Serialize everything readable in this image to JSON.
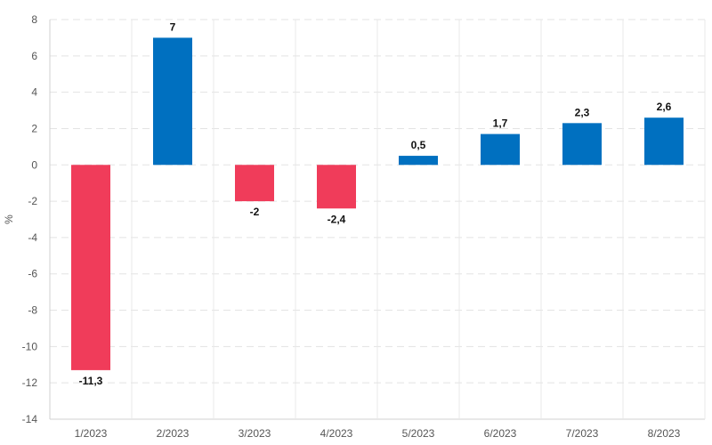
{
  "chart_data": {
    "type": "bar",
    "title": "",
    "xlabel": "",
    "ylabel": "%",
    "categories": [
      "1/2023",
      "2/2023",
      "3/2023",
      "4/2023",
      "5/2023",
      "6/2023",
      "7/2023",
      "8/2023"
    ],
    "values": [
      -11.3,
      7,
      -2,
      -2.4,
      0.5,
      1.7,
      2.3,
      2.6
    ],
    "data_labels": [
      "-11,3",
      "7",
      "-2",
      "-2,4",
      "0,5",
      "1,7",
      "2,3",
      "2,6"
    ],
    "ylim": [
      -14,
      8
    ],
    "yticks": [
      -14,
      -12,
      -10,
      -8,
      -6,
      -4,
      -2,
      0,
      2,
      4,
      6,
      8
    ],
    "grid": true,
    "legend": "none",
    "colors": {
      "positive": "#0070C0",
      "negative": "#F03C5A",
      "grid": "#E3E3E3",
      "category_separator": "#E8E8E8"
    }
  }
}
